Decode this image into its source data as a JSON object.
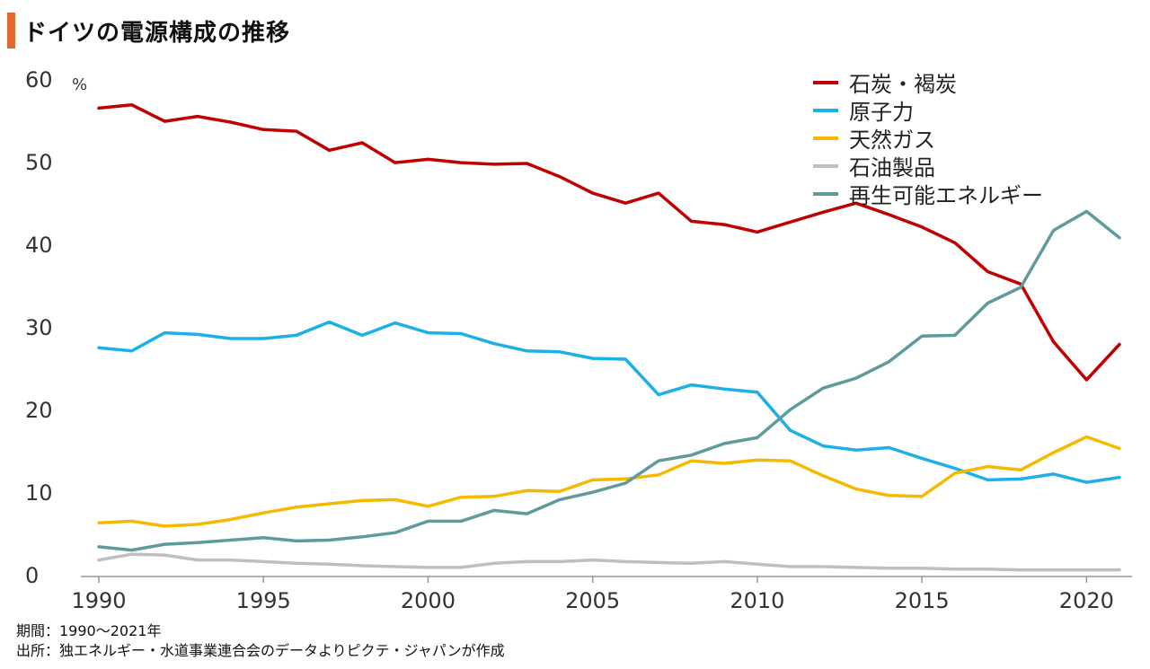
{
  "header": {
    "title": "ドイツの電源構成の推移",
    "accent_color": "#e06a2c"
  },
  "notes": {
    "period": "期間：1990～2021年",
    "source": "出所：独エネルギー・水道事業連合会のデータよりピクテ・ジャパンが作成"
  },
  "chart_data": {
    "type": "line",
    "title": "ドイツの電源構成の推移",
    "xlabel": "",
    "ylabel": "%",
    "xlim": [
      1990,
      2021
    ],
    "ylim": [
      0,
      60
    ],
    "yticks": [
      "0",
      "10",
      "20",
      "30",
      "40",
      "50",
      "60"
    ],
    "xticks": [
      "1990",
      "1995",
      "2000",
      "2005",
      "2010",
      "2015",
      "2020"
    ],
    "grid": false,
    "legend_position": "top-right",
    "x": [
      1990,
      1991,
      1992,
      1993,
      1994,
      1995,
      1996,
      1997,
      1998,
      1999,
      2000,
      2001,
      2002,
      2003,
      2004,
      2005,
      2006,
      2007,
      2008,
      2009,
      2010,
      2011,
      2012,
      2013,
      2014,
      2015,
      2016,
      2017,
      2018,
      2019,
      2020,
      2021
    ],
    "series": [
      {
        "name": "石炭・褐炭",
        "color": "#c00000",
        "values": [
          56.7,
          57.1,
          55.1,
          55.7,
          55.0,
          54.1,
          53.9,
          51.6,
          52.5,
          50.1,
          50.5,
          50.1,
          49.9,
          50.0,
          48.4,
          46.4,
          45.2,
          46.4,
          43.0,
          42.6,
          41.7,
          42.9,
          44.1,
          45.2,
          43.8,
          42.3,
          40.4,
          36.9,
          35.4,
          28.4,
          23.8,
          28.1
        ]
      },
      {
        "name": "原子力",
        "color": "#1cb0e6",
        "values": [
          27.7,
          27.3,
          29.5,
          29.3,
          28.8,
          28.8,
          29.2,
          30.8,
          29.2,
          30.7,
          29.5,
          29.4,
          28.2,
          27.3,
          27.2,
          26.4,
          26.3,
          22.0,
          23.2,
          22.7,
          22.3,
          17.7,
          15.8,
          15.3,
          15.6,
          14.3,
          13.1,
          11.7,
          11.8,
          12.4,
          11.4,
          12.0
        ]
      },
      {
        "name": "天然ガス",
        "color": "#f5b900",
        "values": [
          6.5,
          6.7,
          6.1,
          6.3,
          6.9,
          7.7,
          8.4,
          8.8,
          9.2,
          9.3,
          8.5,
          9.6,
          9.7,
          10.4,
          10.3,
          11.7,
          11.8,
          12.3,
          14.0,
          13.7,
          14.1,
          14.0,
          12.2,
          10.6,
          9.8,
          9.7,
          12.5,
          13.3,
          12.9,
          15.0,
          16.9,
          15.5
        ]
      },
      {
        "name": "石油製品",
        "color": "#bfbfbf",
        "values": [
          2.0,
          2.7,
          2.6,
          2.0,
          2.0,
          1.8,
          1.6,
          1.5,
          1.3,
          1.2,
          1.1,
          1.1,
          1.6,
          1.8,
          1.8,
          2.0,
          1.8,
          1.7,
          1.6,
          1.8,
          1.5,
          1.2,
          1.2,
          1.1,
          1.0,
          1.0,
          0.9,
          0.9,
          0.8,
          0.8,
          0.8,
          0.8
        ]
      },
      {
        "name": "再生可能エネルギー",
        "color": "#5f9a9c",
        "values": [
          3.6,
          3.2,
          3.9,
          4.1,
          4.4,
          4.7,
          4.3,
          4.4,
          4.8,
          5.3,
          6.7,
          6.7,
          8.0,
          7.6,
          9.3,
          10.2,
          11.3,
          14.0,
          14.7,
          16.1,
          16.8,
          20.2,
          22.8,
          24.0,
          26.0,
          29.1,
          29.2,
          33.1,
          35.0,
          41.9,
          44.2,
          41.0
        ]
      }
    ]
  }
}
